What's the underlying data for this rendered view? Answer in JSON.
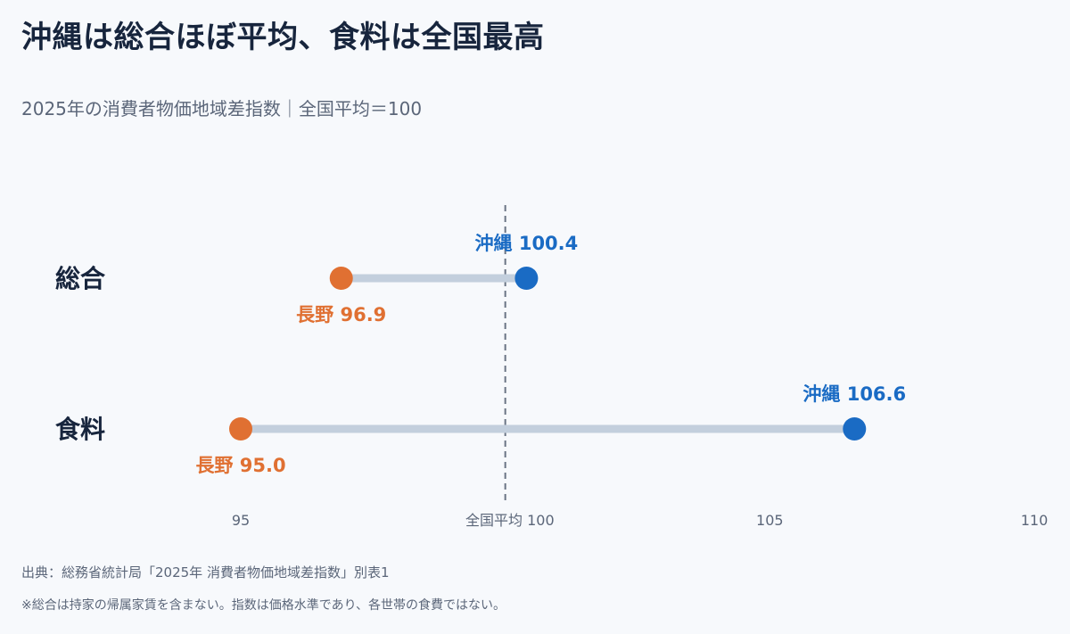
{
  "title": "沖縄は総合ほぼ平均、食料は全国最高",
  "subtitle": "2025年の消費者物価地域差指数｜全国平均＝100",
  "source": "出典：総務省統計局「2025年 消費者物価地域差指数」別表1",
  "note": "※総合は持家の帰属家賃を含まない。指数は価格水準であり、各世帯の食費ではない。",
  "colors": {
    "low": "#e07032",
    "high": "#1a6bc4",
    "connector": "#c3cfdd",
    "reference": "#6b7585",
    "category": "#17253d",
    "tick": "#5b6679"
  },
  "chart_data": {
    "type": "dumbbell",
    "xlim": [
      95,
      110
    ],
    "xticks": [
      {
        "value": 95,
        "label": "95"
      },
      {
        "value": 100,
        "label": "全国平均 100"
      },
      {
        "value": 105,
        "label": "105"
      },
      {
        "value": 110,
        "label": "110"
      }
    ],
    "reference_line": {
      "value": 100,
      "style": "dashed"
    },
    "grid": false,
    "rows": [
      {
        "category": "総合",
        "low": {
          "region": "長野",
          "value": 96.9,
          "label": "長野 96.9"
        },
        "high": {
          "region": "沖縄",
          "value": 100.4,
          "label": "沖縄 100.4"
        }
      },
      {
        "category": "食料",
        "low": {
          "region": "長野",
          "value": 95.0,
          "label": "長野 95.0"
        },
        "high": {
          "region": "沖縄",
          "value": 106.6,
          "label": "沖縄 106.6"
        }
      }
    ]
  }
}
